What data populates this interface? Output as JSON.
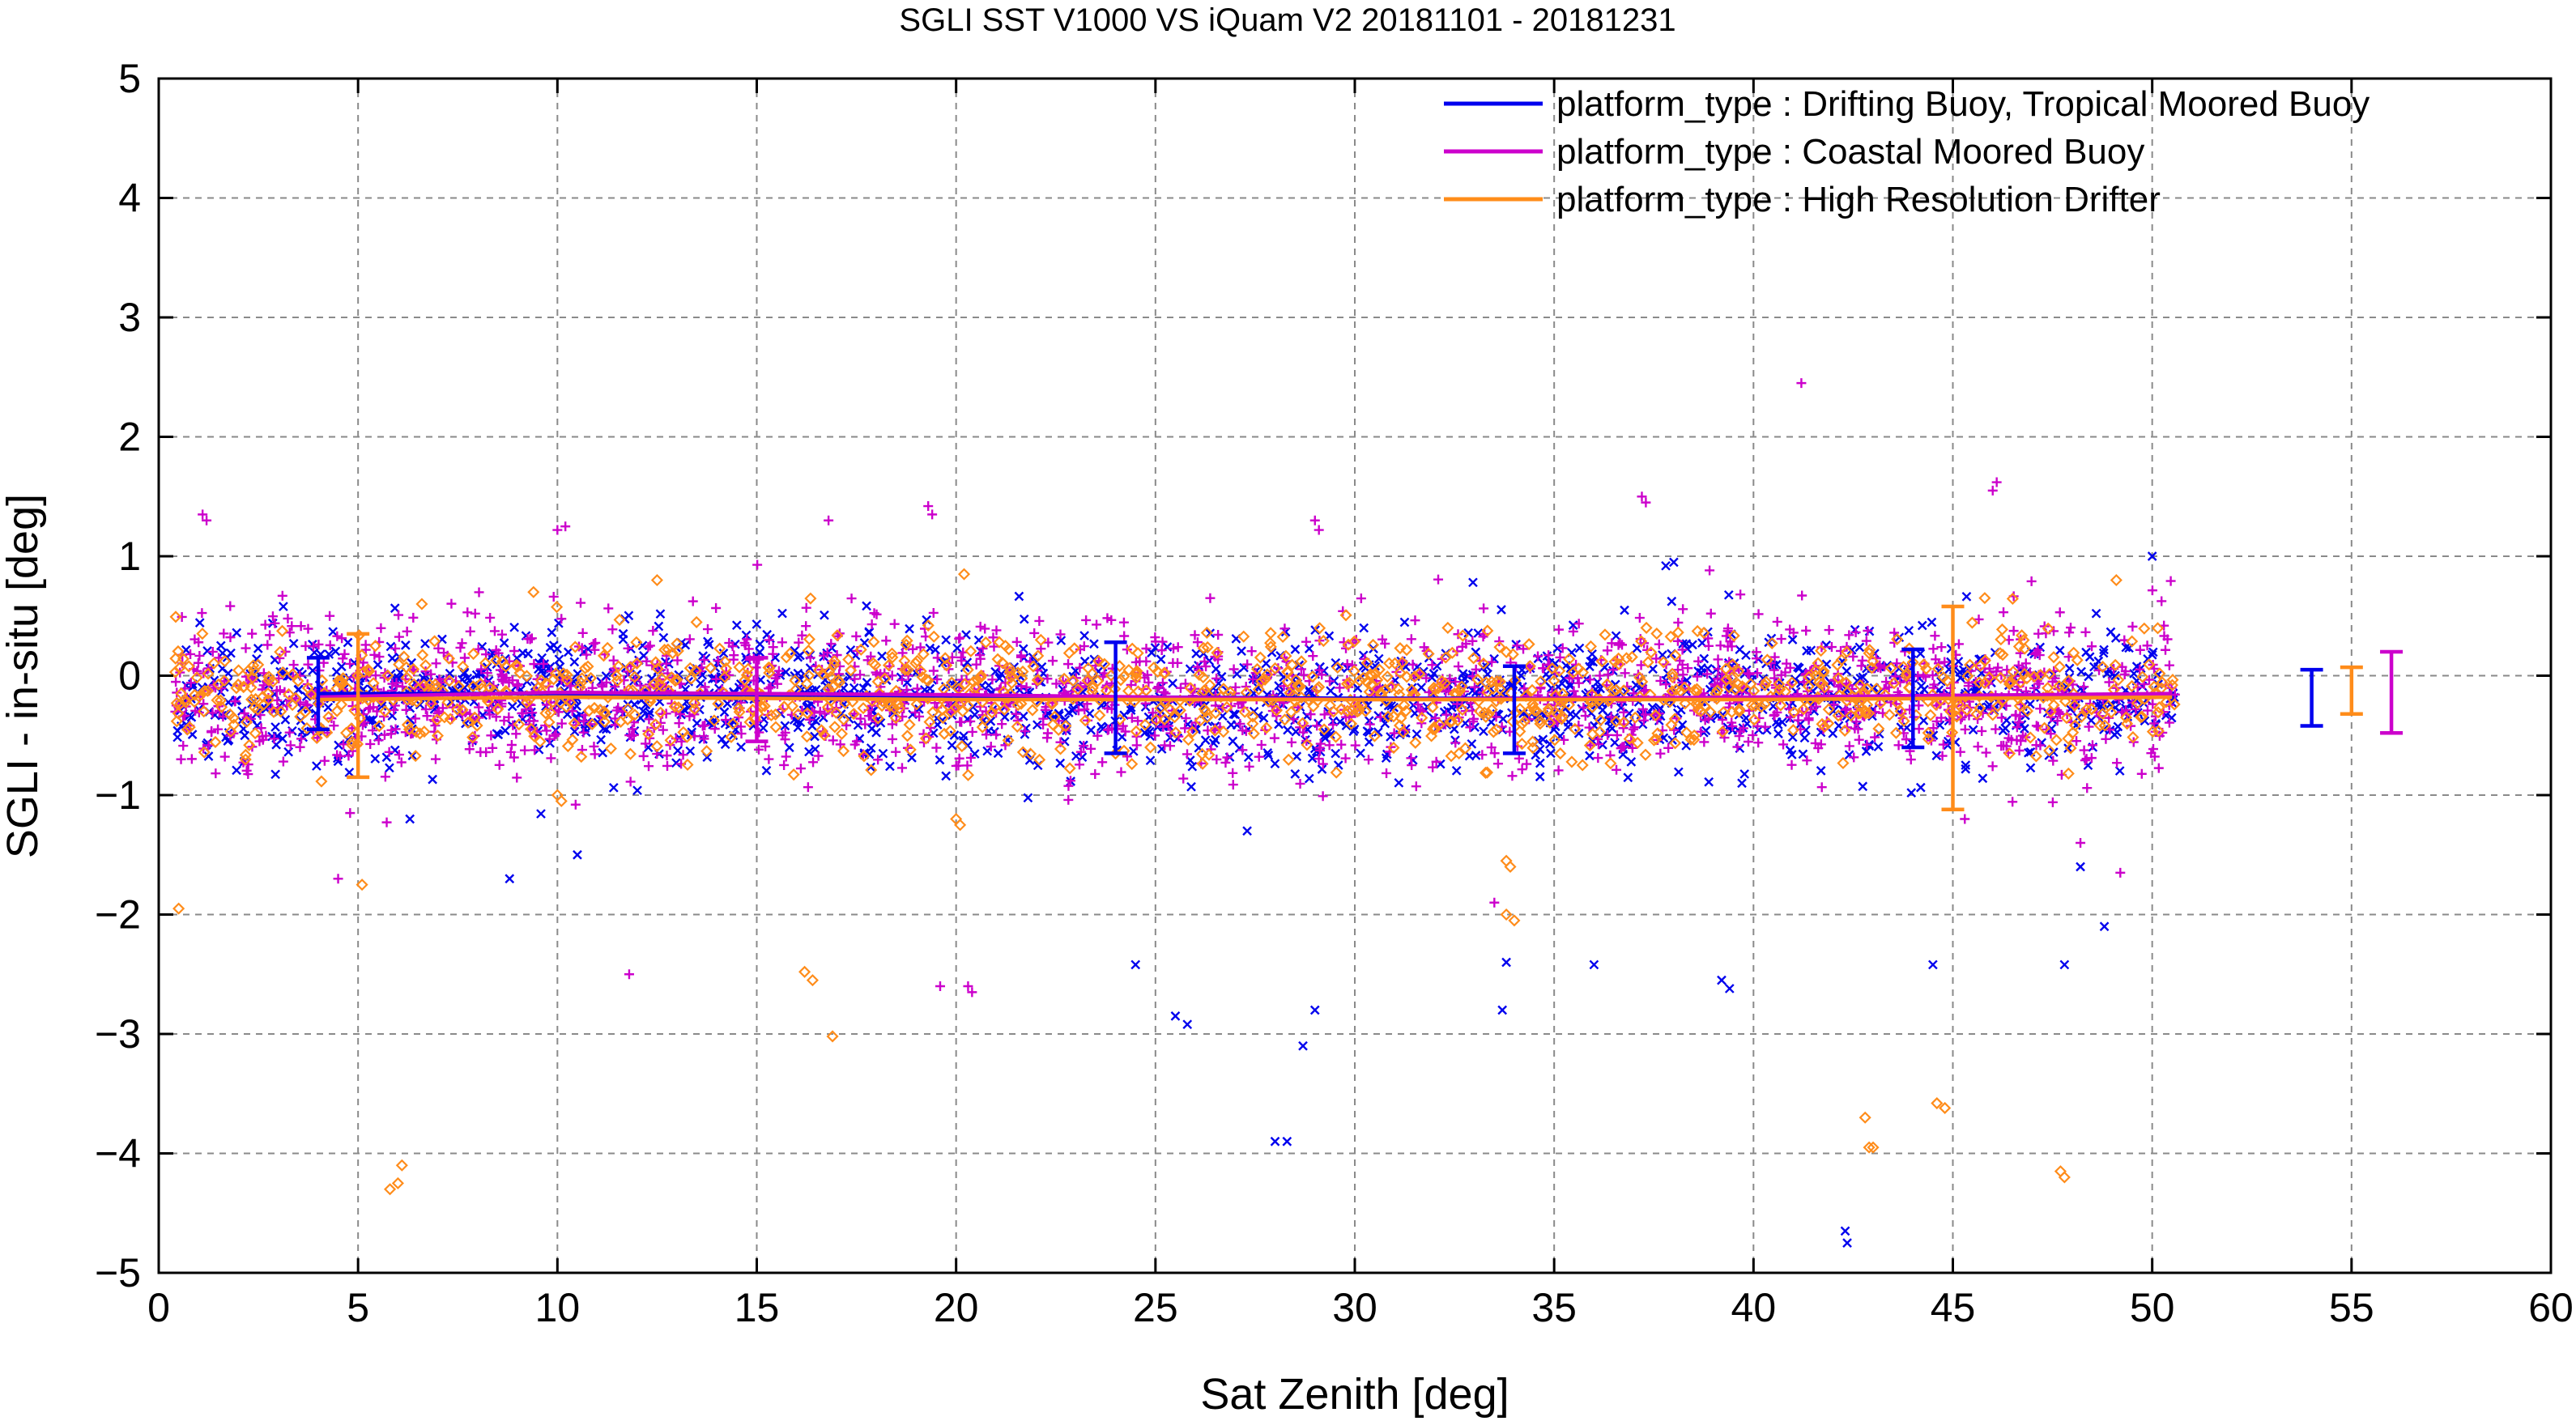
{
  "chart_data": {
    "type": "scatter",
    "title": "SGLI SST V1000 VS iQuam V2 20181101 - 20181231",
    "xlabel": "Sat Zenith [deg]",
    "ylabel": "SGLI - in-situ [deg]",
    "xlim": [
      0,
      60
    ],
    "ylim": [
      -5,
      5
    ],
    "xticks": [
      0,
      5,
      10,
      15,
      20,
      25,
      30,
      35,
      40,
      45,
      50,
      55,
      60
    ],
    "yticks": [
      -5,
      -4,
      -3,
      -2,
      -1,
      0,
      1,
      2,
      3,
      4,
      5
    ],
    "grid": true,
    "legend_position": "top-right",
    "series": [
      {
        "name": "platform_type : Drifting Buoy, Tropical Moored Buoy",
        "color": "#0000ee",
        "marker": "x",
        "mean_line": {
          "x": [
            4,
            10,
            20,
            30,
            40,
            50.5
          ],
          "y": [
            -0.15,
            -0.15,
            -0.17,
            -0.19,
            -0.19,
            -0.17
          ]
        },
        "error_bars": [
          {
            "x": 4,
            "mean": -0.15,
            "low": -0.45,
            "high": 0.15
          },
          {
            "x": 24,
            "mean": -0.19,
            "low": -0.65,
            "high": 0.28
          },
          {
            "x": 34,
            "mean": -0.28,
            "low": -0.65,
            "high": 0.08
          },
          {
            "x": 44,
            "mean": -0.2,
            "low": -0.6,
            "high": 0.22
          },
          {
            "x": 54,
            "mean": -0.18,
            "low": -0.42,
            "high": 0.05
          }
        ],
        "outliers": [
          [
            24.5,
            -2.42
          ],
          [
            25.5,
            -2.85
          ],
          [
            25.8,
            -2.92
          ],
          [
            28,
            -3.9
          ],
          [
            28.3,
            -3.9
          ],
          [
            28.7,
            -3.1
          ],
          [
            29,
            -2.8
          ],
          [
            33.7,
            -2.8
          ],
          [
            33.8,
            -2.4
          ],
          [
            36,
            -2.42
          ],
          [
            39.2,
            -2.55
          ],
          [
            39.4,
            -2.62
          ],
          [
            42.3,
            -4.65
          ],
          [
            42.35,
            -4.75
          ],
          [
            44.5,
            -2.42
          ],
          [
            47.8,
            -2.42
          ],
          [
            48.2,
            -1.6
          ],
          [
            48.8,
            -2.1
          ],
          [
            10.5,
            -1.5
          ],
          [
            6.3,
            -1.2
          ],
          [
            8.8,
            -1.7
          ],
          [
            27.3,
            -1.3
          ],
          [
            37.8,
            0.92
          ],
          [
            38,
            0.95
          ],
          [
            50,
            1.0
          ]
        ]
      },
      {
        "name": "platform_type : Coastal Moored Buoy",
        "color": "#cc00cc",
        "marker": "+",
        "mean_line": {
          "x": [
            4,
            10,
            20,
            30,
            40,
            50.5
          ],
          "y": [
            -0.18,
            -0.14,
            -0.16,
            -0.2,
            -0.18,
            -0.15
          ]
        },
        "error_bars": [
          {
            "x": 15,
            "mean": -0.2,
            "low": -0.55,
            "high": 0.15
          },
          {
            "x": 56,
            "mean": -0.13,
            "low": -0.48,
            "high": 0.2
          }
        ],
        "outliers": [
          [
            41.2,
            2.45
          ],
          [
            46,
            1.55
          ],
          [
            46.1,
            1.62
          ],
          [
            37.2,
            1.5
          ],
          [
            37.3,
            1.45
          ],
          [
            19.3,
            1.42
          ],
          [
            19.4,
            1.35
          ],
          [
            1.1,
            1.35
          ],
          [
            1.2,
            1.3
          ],
          [
            10,
            1.22
          ],
          [
            10.2,
            1.25
          ],
          [
            29,
            1.3
          ],
          [
            29.1,
            1.22
          ],
          [
            4.5,
            -1.7
          ],
          [
            4.8,
            -1.15
          ],
          [
            11.8,
            -2.5
          ],
          [
            19.6,
            -2.6
          ],
          [
            20.3,
            -2.6
          ],
          [
            20.4,
            -2.65
          ],
          [
            48.2,
            -1.4
          ],
          [
            49.2,
            -1.65
          ],
          [
            16.8,
            1.3
          ],
          [
            33.5,
            -1.9
          ],
          [
            45.3,
            -1.2
          ]
        ]
      },
      {
        "name": "platform_type : High Resolution Drifter",
        "color": "#ff8c1a",
        "marker": "diamond",
        "mean_line": {
          "x": [
            4,
            10,
            20,
            30,
            40,
            50.5
          ],
          "y": [
            -0.2,
            -0.18,
            -0.2,
            -0.2,
            -0.2,
            -0.18
          ]
        },
        "error_bars": [
          {
            "x": 5,
            "mean": -0.2,
            "low": -0.85,
            "high": 0.35
          },
          {
            "x": 45,
            "mean": -0.3,
            "low": -1.12,
            "high": 0.58
          },
          {
            "x": 55,
            "mean": -0.12,
            "low": -0.32,
            "high": 0.07
          }
        ],
        "outliers": [
          [
            0.5,
            -1.95
          ],
          [
            5.8,
            -4.3
          ],
          [
            6,
            -4.25
          ],
          [
            6.1,
            -4.1
          ],
          [
            5.1,
            -1.75
          ],
          [
            16.2,
            -2.48
          ],
          [
            16.4,
            -2.55
          ],
          [
            16.9,
            -3.02
          ],
          [
            33.8,
            -1.55
          ],
          [
            33.9,
            -1.6
          ],
          [
            33.8,
            -2.0
          ],
          [
            34,
            -2.05
          ],
          [
            42.8,
            -3.7
          ],
          [
            42.9,
            -3.95
          ],
          [
            43,
            -3.95
          ],
          [
            44.6,
            -3.58
          ],
          [
            44.8,
            -3.62
          ],
          [
            47.7,
            -4.15
          ],
          [
            47.8,
            -4.2
          ],
          [
            20,
            -1.2
          ],
          [
            20.1,
            -1.25
          ],
          [
            10,
            -1.0
          ],
          [
            10.1,
            -1.05
          ],
          [
            12.5,
            0.8
          ],
          [
            20.2,
            0.85
          ],
          [
            49.1,
            0.8
          ],
          [
            45.8,
            0.65
          ],
          [
            6.6,
            0.6
          ],
          [
            9.4,
            0.7
          ]
        ]
      }
    ]
  }
}
